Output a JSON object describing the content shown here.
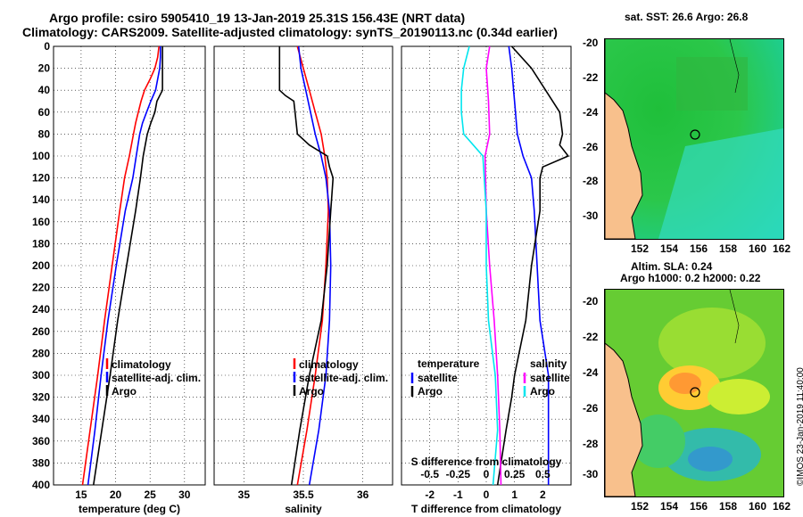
{
  "title": {
    "line1": "Argo profile: csiro 5905410_19 13-Jan-2019 25.31S 156.43E (NRT data)",
    "line2": "Climatology: CARS2009. Satellite-adjusted climatology: synTS_20190113.nc (0.34d earlier)"
  },
  "colors": {
    "climatology": "#ff0000",
    "satellite": "#0000ff",
    "argo": "#000000",
    "temp_diff": "#ff00ff",
    "sal_diff": "#00e5ee"
  },
  "chart_data": [
    {
      "type": "line",
      "title": "",
      "xlabel": "temperature (deg C)",
      "ylabel": "",
      "xlim": [
        11,
        33
      ],
      "ylim": [
        400,
        0
      ],
      "xticks": [
        "15",
        "20",
        "25",
        "30"
      ],
      "yticks": [
        "0",
        "20",
        "40",
        "60",
        "80",
        "100",
        "120",
        "140",
        "160",
        "180",
        "200",
        "220",
        "240",
        "260",
        "280",
        "300",
        "320",
        "340",
        "360",
        "380",
        "400"
      ],
      "legend": [
        "climatology",
        "satellite-adj. clim.",
        "Argo"
      ],
      "series": [
        {
          "name": "climatology",
          "depth": [
            0,
            10,
            20,
            30,
            40,
            50,
            60,
            70,
            80,
            100,
            120,
            150,
            200,
            250,
            300,
            350,
            400
          ],
          "values": [
            26.3,
            26.1,
            25.7,
            25.0,
            24.2,
            23.7,
            23.3,
            22.9,
            22.6,
            22.0,
            21.3,
            20.6,
            19.5,
            18.4,
            17.4,
            16.3,
            15.2
          ]
        },
        {
          "name": "satellite-adj. clim.",
          "depth": [
            0,
            10,
            20,
            30,
            40,
            50,
            60,
            70,
            80,
            100,
            120,
            150,
            200,
            250,
            300,
            350,
            400
          ],
          "values": [
            26.5,
            26.5,
            26.4,
            26.1,
            25.8,
            25.1,
            24.5,
            23.9,
            23.5,
            23.0,
            22.5,
            21.4,
            20.1,
            18.9,
            17.9,
            17.0,
            16.0
          ]
        },
        {
          "name": "Argo",
          "depth": [
            0,
            10,
            20,
            30,
            40,
            45,
            50,
            60,
            70,
            80,
            90,
            100,
            120,
            150,
            200,
            250,
            300,
            350,
            400
          ],
          "values": [
            26.8,
            26.8,
            26.8,
            26.8,
            26.8,
            26.4,
            26.0,
            25.7,
            25.1,
            24.6,
            24.3,
            24.0,
            23.6,
            22.9,
            21.6,
            20.3,
            19.2,
            18.0,
            16.8
          ]
        }
      ]
    },
    {
      "type": "line",
      "title": "",
      "xlabel": "salinity",
      "ylabel": "",
      "xlim": [
        34.75,
        36.25
      ],
      "ylim": [
        400,
        0
      ],
      "xticks": [
        "35",
        "35.5",
        "36"
      ],
      "legend": [
        "climatology",
        "satellite-adj. clim.",
        "Argo"
      ],
      "series": [
        {
          "name": "climatology",
          "depth": [
            0,
            20,
            40,
            60,
            80,
            100,
            120,
            150,
            200,
            250,
            300,
            350,
            400
          ],
          "values": [
            35.45,
            35.5,
            35.55,
            35.6,
            35.65,
            35.68,
            35.7,
            35.71,
            35.69,
            35.66,
            35.6,
            35.53,
            35.45
          ]
        },
        {
          "name": "satellite-adj. clim.",
          "depth": [
            0,
            20,
            40,
            60,
            80,
            100,
            120,
            150,
            200,
            250,
            300,
            350,
            400
          ],
          "values": [
            35.46,
            35.48,
            35.52,
            35.56,
            35.6,
            35.65,
            35.69,
            35.72,
            35.73,
            35.72,
            35.69,
            35.63,
            35.55
          ]
        },
        {
          "name": "Argo",
          "depth": [
            0,
            10,
            20,
            30,
            40,
            45,
            50,
            60,
            80,
            90,
            100,
            110,
            120,
            150,
            200,
            250,
            300,
            350,
            400
          ],
          "values": [
            35.3,
            35.3,
            35.3,
            35.3,
            35.3,
            35.35,
            35.42,
            35.43,
            35.45,
            35.55,
            35.7,
            35.72,
            35.75,
            35.73,
            35.7,
            35.65,
            35.55,
            35.47,
            35.4
          ]
        }
      ]
    },
    {
      "type": "line",
      "title": "",
      "xlabel": "T difference from climatology",
      "x2label": "S difference from climatology",
      "ylabel": "",
      "xlim": [
        -3,
        3
      ],
      "ylim": [
        400,
        0
      ],
      "xticks": [
        "-2",
        "-1",
        "0",
        "1",
        "2"
      ],
      "x2ticks": [
        "-0.5",
        "-0.25",
        "0",
        "0.25",
        "0.5"
      ],
      "legend_left": {
        "title": "temperature",
        "items": [
          "satellite",
          "Argo"
        ]
      },
      "legend_right": {
        "title": "salinity",
        "items": [
          "satellite",
          "Argo"
        ]
      },
      "series": [
        {
          "name": "temperature satellite",
          "depth": [
            0,
            20,
            50,
            80,
            100,
            120,
            150,
            200,
            250,
            300,
            350,
            400
          ],
          "values": [
            0.8,
            0.9,
            1.0,
            1.1,
            1.3,
            1.6,
            1.7,
            1.8,
            1.9,
            2.2,
            2.2,
            2.2
          ]
        },
        {
          "name": "temperature Argo",
          "depth": [
            0,
            20,
            40,
            60,
            80,
            90,
            100,
            110,
            120,
            150,
            200,
            250,
            300,
            320,
            350,
            400
          ],
          "values": [
            0.9,
            1.6,
            2.1,
            2.6,
            2.7,
            2.6,
            2.9,
            2.0,
            1.9,
            1.9,
            1.6,
            1.4,
            1.0,
            0.9,
            0.7,
            0.4
          ]
        },
        {
          "name": "salinity satellite",
          "depth": [
            0,
            20,
            50,
            80,
            100,
            150,
            200,
            250,
            300,
            350,
            400
          ],
          "values": [
            0.03,
            0.0,
            0.02,
            0.03,
            -0.01,
            0.0,
            0.03,
            0.07,
            0.1,
            0.12,
            0.13
          ]
        },
        {
          "name": "salinity Argo",
          "depth": [
            0,
            20,
            40,
            60,
            80,
            100,
            150,
            200,
            250,
            300,
            350,
            400
          ],
          "values": [
            -0.15,
            -0.2,
            -0.22,
            -0.22,
            -0.2,
            -0.03,
            0.0,
            0.0,
            0.02,
            0.08,
            0.1,
            0.06
          ]
        }
      ]
    }
  ],
  "maps": {
    "sst": {
      "title": "sat. SST: 26.6 Argo: 26.8",
      "xticks": [
        "152",
        "154",
        "156",
        "158",
        "160",
        "162"
      ],
      "yticks": [
        "-20",
        "-22",
        "-24",
        "-26",
        "-28",
        "-30"
      ]
    },
    "sla": {
      "title1": "Altim. SLA: 0.24",
      "title2": "Argo h1000: 0.2 h2000: 0.22",
      "xticks": [
        "152",
        "154",
        "156",
        "158",
        "160",
        "162"
      ],
      "yticks": [
        "-20",
        "-22",
        "-24",
        "-26",
        "-28",
        "-30"
      ]
    }
  },
  "credit": "©IMOS 23-Jan-2019 11:40:00"
}
